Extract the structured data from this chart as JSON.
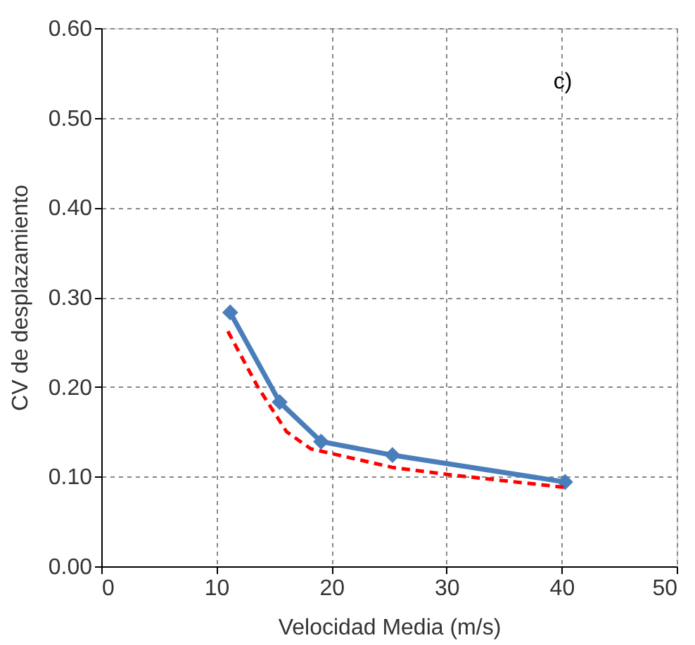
{
  "chart_data": {
    "type": "line",
    "xlabel": "Velocidad  Media (m/s)",
    "ylabel": "CV de desplazamiento",
    "annotations": [
      "c)"
    ],
    "series": [
      {
        "color": "#4a7ebb",
        "x": [
          11.2,
          15.5,
          19.1,
          25.3,
          40.3
        ],
        "values": [
          0.283,
          0.183,
          0.139,
          0.124,
          0.094
        ],
        "marker": "diamond",
        "line_style": "solid"
      },
      {
        "type": "line",
        "color": "#ff0000",
        "x": [
          11.0,
          13.6,
          16.1,
          18.2,
          25.4,
          30.3,
          40.3
        ],
        "values": [
          0.262,
          0.2,
          0.15,
          0.131,
          0.11,
          0.102,
          0.088
        ],
        "marker": "none",
        "line_style": "dashed"
      }
    ],
    "xlim": [
      0,
      50
    ],
    "xticks": [
      0,
      10,
      20,
      30,
      40,
      50
    ],
    "ylim": [
      0,
      0.6
    ],
    "yticks": [
      {
        "value": 0,
        "label": "0.00"
      },
      {
        "value": 0.1,
        "label": "0.10"
      },
      {
        "value": 0.2,
        "label": "0.20"
      },
      {
        "value": 0.3,
        "label": "0.30"
      },
      {
        "value": 0.4,
        "label": "0.40"
      },
      {
        "value": 0.5,
        "label": "0.50"
      },
      {
        "value": 0.6,
        "label": "0.60"
      }
    ],
    "grid": true
  }
}
